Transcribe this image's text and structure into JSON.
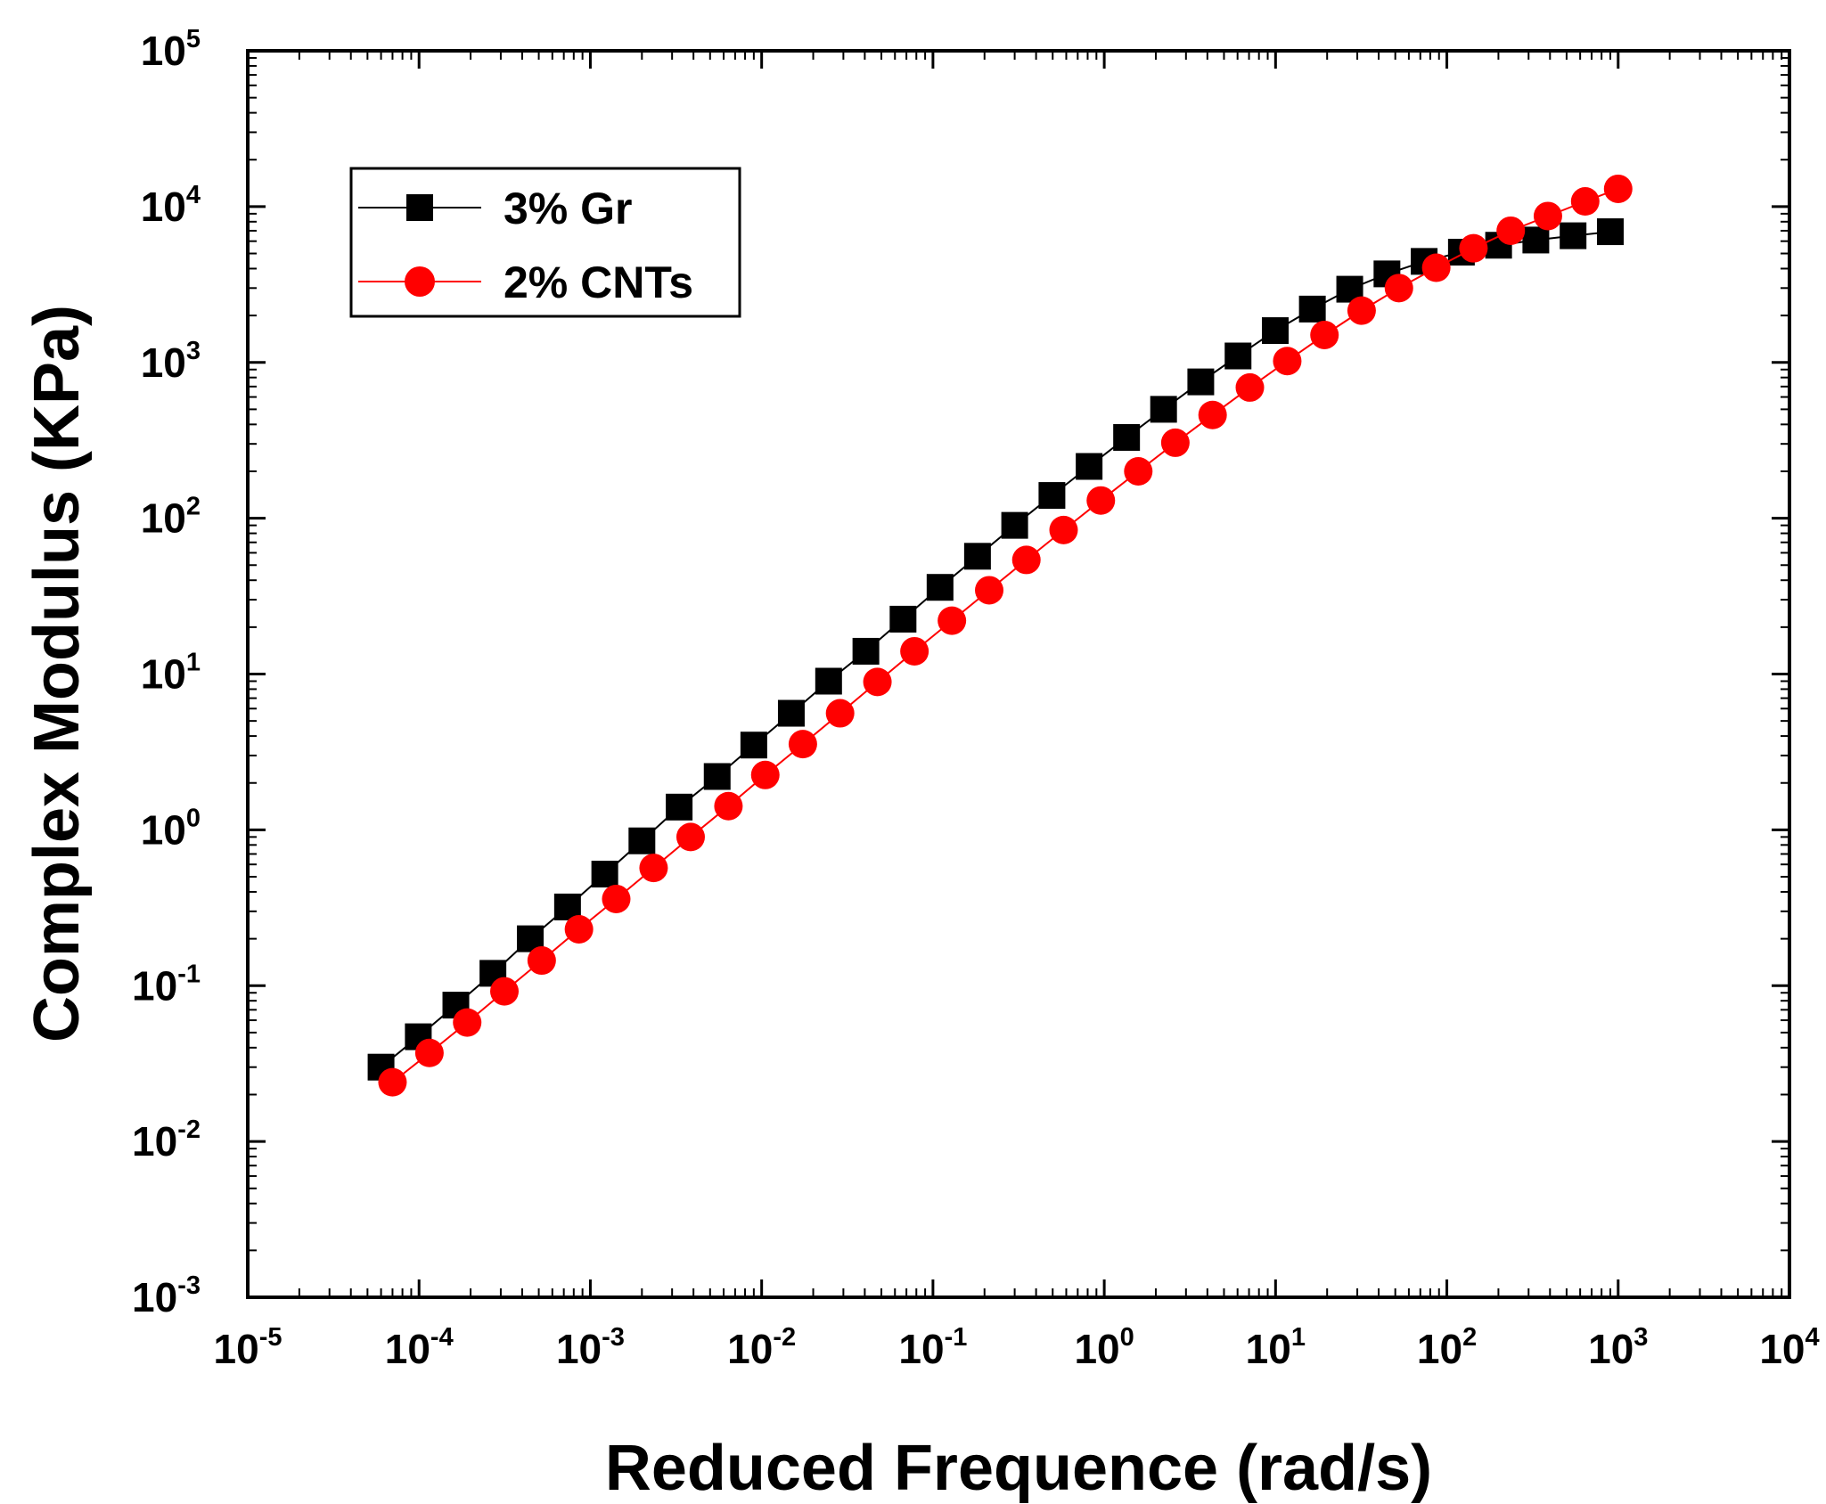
{
  "chart_data": {
    "type": "scatter",
    "xscale": "log",
    "yscale": "log",
    "xlabel": "Reduced Frequence (rad/s)",
    "ylabel": "Complex Modulus (KPa)",
    "xlim": [
      1e-05,
      10000.0
    ],
    "ylim": [
      0.001,
      100000.0
    ],
    "xtick_labels": [
      {
        "base": "10",
        "exp": "-5"
      },
      {
        "base": "10",
        "exp": "-4"
      },
      {
        "base": "10",
        "exp": "-3"
      },
      {
        "base": "10",
        "exp": "-2"
      },
      {
        "base": "10",
        "exp": "-1"
      },
      {
        "base": "10",
        "exp": "0"
      },
      {
        "base": "10",
        "exp": "1"
      },
      {
        "base": "10",
        "exp": "2"
      },
      {
        "base": "10",
        "exp": "3"
      },
      {
        "base": "10",
        "exp": "4"
      }
    ],
    "ytick_labels": [
      {
        "base": "10",
        "exp": "-3"
      },
      {
        "base": "10",
        "exp": "-2"
      },
      {
        "base": "10",
        "exp": "-1"
      },
      {
        "base": "10",
        "exp": "0"
      },
      {
        "base": "10",
        "exp": "1"
      },
      {
        "base": "10",
        "exp": "2"
      },
      {
        "base": "10",
        "exp": "3"
      },
      {
        "base": "10",
        "exp": "4"
      },
      {
        "base": "10",
        "exp": "5"
      }
    ],
    "legend_position": "top-left",
    "series": [
      {
        "name": "3% Gr",
        "marker": "square",
        "color": "#000000",
        "line_color": "#000000",
        "x": [
          6e-05,
          9.9e-05,
          0.000164,
          0.00027,
          0.000446,
          0.000736,
          0.001214,
          0.002,
          0.0033,
          0.0055,
          0.009,
          0.0149,
          0.0246,
          0.0406,
          0.0669,
          0.11,
          0.182,
          0.3,
          0.495,
          0.816,
          1.35,
          2.22,
          3.66,
          6.04,
          9.96,
          16.4,
          27.1,
          44.7,
          73.7,
          121.6,
          200.5,
          330.7,
          545.5,
          900
        ],
        "y": [
          0.03,
          0.047,
          0.075,
          0.12,
          0.2,
          0.32,
          0.52,
          0.85,
          1.4,
          2.2,
          3.5,
          5.6,
          9,
          14,
          22.5,
          36,
          57,
          90,
          140,
          215,
          330,
          500,
          750,
          1100,
          1600,
          2200,
          2950,
          3700,
          4450,
          5100,
          5650,
          6100,
          6500,
          6900
        ]
      },
      {
        "name": "2% CNTs",
        "marker": "circle",
        "color": "#ff0000",
        "line_color": "#ff0000",
        "x": [
          7e-05,
          0.000115,
          0.000191,
          0.000315,
          0.00052,
          0.000858,
          0.001416,
          0.00234,
          0.00385,
          0.0064,
          0.0105,
          0.0174,
          0.0287,
          0.0474,
          0.078,
          0.129,
          0.213,
          0.351,
          0.579,
          0.955,
          1.58,
          2.6,
          4.29,
          7.08,
          11.7,
          19.3,
          31.8,
          52.5,
          86.7,
          143,
          236,
          389,
          642,
          1000
        ],
        "y": [
          0.024,
          0.037,
          0.058,
          0.092,
          0.145,
          0.23,
          0.36,
          0.57,
          0.9,
          1.42,
          2.25,
          3.55,
          5.6,
          8.9,
          14,
          22,
          34.5,
          54,
          84,
          130,
          200,
          305,
          460,
          690,
          1020,
          1500,
          2150,
          3000,
          4050,
          5400,
          7000,
          8700,
          10800,
          13000
        ]
      }
    ]
  }
}
